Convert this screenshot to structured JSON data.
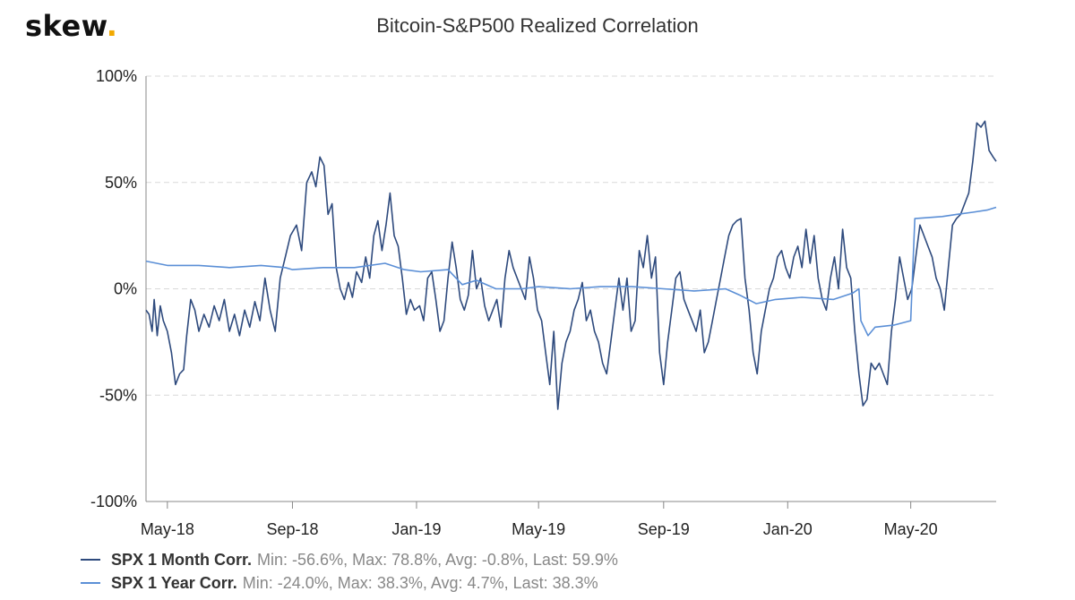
{
  "logo": {
    "text": "skew",
    "dot": ".",
    "dot_color": "#f2a900"
  },
  "chart_data": {
    "type": "line",
    "title": "Bitcoin-S&P500 Realized Correlation",
    "xlabel": "",
    "ylabel": "",
    "ylim": [
      -100,
      100
    ],
    "xlim": [
      "2018-04-10",
      "2020-07-24"
    ],
    "y_ticks": [
      "100%",
      "50%",
      "0%",
      "-50%",
      "-100%"
    ],
    "y_tick_values": [
      100,
      50,
      0,
      -50,
      -100
    ],
    "x_ticks": [
      "May-18",
      "Sep-18",
      "Jan-19",
      "May-19",
      "Sep-19",
      "Jan-20",
      "May-20"
    ],
    "x_tick_dates": [
      "2018-05-01",
      "2018-09-01",
      "2019-01-01",
      "2019-05-01",
      "2019-09-01",
      "2020-01-01",
      "2020-05-01"
    ],
    "grid": "horizontal dashed",
    "legend_position": "bottom-left",
    "series": [
      {
        "name": "SPX 1 Month Corr.",
        "stats": "Min: -56.6%, Max: 78.8%, Avg: -0.8%, Last: 59.9%",
        "color": "#2e4a7d",
        "points": [
          [
            "2018-04-10",
            -10
          ],
          [
            "2018-04-13",
            -12
          ],
          [
            "2018-04-16",
            -20
          ],
          [
            "2018-04-18",
            -5
          ],
          [
            "2018-04-21",
            -22
          ],
          [
            "2018-04-24",
            -8
          ],
          [
            "2018-04-27",
            -15
          ],
          [
            "2018-05-01",
            -20
          ],
          [
            "2018-05-05",
            -30
          ],
          [
            "2018-05-09",
            -45
          ],
          [
            "2018-05-13",
            -40
          ],
          [
            "2018-05-17",
            -38
          ],
          [
            "2018-05-20",
            -22
          ],
          [
            "2018-05-24",
            -5
          ],
          [
            "2018-05-28",
            -10
          ],
          [
            "2018-06-01",
            -20
          ],
          [
            "2018-06-06",
            -12
          ],
          [
            "2018-06-11",
            -18
          ],
          [
            "2018-06-16",
            -8
          ],
          [
            "2018-06-21",
            -15
          ],
          [
            "2018-06-26",
            -5
          ],
          [
            "2018-07-01",
            -20
          ],
          [
            "2018-07-06",
            -12
          ],
          [
            "2018-07-11",
            -22
          ],
          [
            "2018-07-16",
            -10
          ],
          [
            "2018-07-21",
            -18
          ],
          [
            "2018-07-26",
            -6
          ],
          [
            "2018-07-31",
            -15
          ],
          [
            "2018-08-05",
            5
          ],
          [
            "2018-08-10",
            -10
          ],
          [
            "2018-08-15",
            -20
          ],
          [
            "2018-08-20",
            5
          ],
          [
            "2018-08-25",
            15
          ],
          [
            "2018-08-30",
            25
          ],
          [
            "2018-09-05",
            30
          ],
          [
            "2018-09-10",
            18
          ],
          [
            "2018-09-15",
            50
          ],
          [
            "2018-09-20",
            55
          ],
          [
            "2018-09-24",
            48
          ],
          [
            "2018-09-28",
            62
          ],
          [
            "2018-10-02",
            58
          ],
          [
            "2018-10-06",
            35
          ],
          [
            "2018-10-10",
            40
          ],
          [
            "2018-10-14",
            10
          ],
          [
            "2018-10-18",
            0
          ],
          [
            "2018-10-22",
            -5
          ],
          [
            "2018-10-26",
            3
          ],
          [
            "2018-10-30",
            -4
          ],
          [
            "2018-11-03",
            8
          ],
          [
            "2018-11-08",
            3
          ],
          [
            "2018-11-12",
            15
          ],
          [
            "2018-11-16",
            5
          ],
          [
            "2018-11-20",
            25
          ],
          [
            "2018-11-24",
            32
          ],
          [
            "2018-11-28",
            18
          ],
          [
            "2018-12-02",
            30
          ],
          [
            "2018-12-06",
            45
          ],
          [
            "2018-12-10",
            25
          ],
          [
            "2018-12-14",
            20
          ],
          [
            "2018-12-18",
            5
          ],
          [
            "2018-12-22",
            -12
          ],
          [
            "2018-12-26",
            -5
          ],
          [
            "2018-12-30",
            -10
          ],
          [
            "2019-01-04",
            -8
          ],
          [
            "2019-01-08",
            -15
          ],
          [
            "2019-01-12",
            5
          ],
          [
            "2019-01-16",
            8
          ],
          [
            "2019-01-20",
            -5
          ],
          [
            "2019-01-24",
            -20
          ],
          [
            "2019-01-28",
            -15
          ],
          [
            "2019-02-01",
            5
          ],
          [
            "2019-02-05",
            22
          ],
          [
            "2019-02-09",
            10
          ],
          [
            "2019-02-13",
            -5
          ],
          [
            "2019-02-17",
            -10
          ],
          [
            "2019-02-21",
            -3
          ],
          [
            "2019-02-25",
            18
          ],
          [
            "2019-03-01",
            0
          ],
          [
            "2019-03-05",
            5
          ],
          [
            "2019-03-09",
            -8
          ],
          [
            "2019-03-13",
            -15
          ],
          [
            "2019-03-17",
            -10
          ],
          [
            "2019-03-21",
            -5
          ],
          [
            "2019-03-25",
            -18
          ],
          [
            "2019-03-29",
            5
          ],
          [
            "2019-04-02",
            18
          ],
          [
            "2019-04-06",
            10
          ],
          [
            "2019-04-10",
            5
          ],
          [
            "2019-04-14",
            0
          ],
          [
            "2019-04-18",
            -5
          ],
          [
            "2019-04-22",
            15
          ],
          [
            "2019-04-26",
            5
          ],
          [
            "2019-04-30",
            -10
          ],
          [
            "2019-05-04",
            -15
          ],
          [
            "2019-05-08",
            -30
          ],
          [
            "2019-05-12",
            -45
          ],
          [
            "2019-05-16",
            -20
          ],
          [
            "2019-05-20",
            -56.6
          ],
          [
            "2019-05-24",
            -35
          ],
          [
            "2019-05-28",
            -25
          ],
          [
            "2019-06-01",
            -20
          ],
          [
            "2019-06-05",
            -10
          ],
          [
            "2019-06-09",
            -5
          ],
          [
            "2019-06-13",
            3
          ],
          [
            "2019-06-17",
            -15
          ],
          [
            "2019-06-21",
            -10
          ],
          [
            "2019-06-25",
            -20
          ],
          [
            "2019-06-29",
            -25
          ],
          [
            "2019-07-03",
            -35
          ],
          [
            "2019-07-07",
            -40
          ],
          [
            "2019-07-11",
            -25
          ],
          [
            "2019-07-15",
            -10
          ],
          [
            "2019-07-19",
            5
          ],
          [
            "2019-07-23",
            -10
          ],
          [
            "2019-07-27",
            5
          ],
          [
            "2019-07-31",
            -20
          ],
          [
            "2019-08-04",
            -15
          ],
          [
            "2019-08-08",
            18
          ],
          [
            "2019-08-12",
            10
          ],
          [
            "2019-08-16",
            25
          ],
          [
            "2019-08-20",
            5
          ],
          [
            "2019-08-24",
            15
          ],
          [
            "2019-08-28",
            -30
          ],
          [
            "2019-09-01",
            -45
          ],
          [
            "2019-09-05",
            -25
          ],
          [
            "2019-09-09",
            -10
          ],
          [
            "2019-09-13",
            5
          ],
          [
            "2019-09-17",
            8
          ],
          [
            "2019-09-21",
            -5
          ],
          [
            "2019-09-25",
            -10
          ],
          [
            "2019-09-29",
            -15
          ],
          [
            "2019-10-03",
            -20
          ],
          [
            "2019-10-07",
            -10
          ],
          [
            "2019-10-11",
            -30
          ],
          [
            "2019-10-15",
            -25
          ],
          [
            "2019-10-19",
            -15
          ],
          [
            "2019-10-23",
            -5
          ],
          [
            "2019-10-27",
            5
          ],
          [
            "2019-10-31",
            15
          ],
          [
            "2019-11-04",
            25
          ],
          [
            "2019-11-08",
            30
          ],
          [
            "2019-11-12",
            32
          ],
          [
            "2019-11-16",
            33
          ],
          [
            "2019-11-20",
            5
          ],
          [
            "2019-11-24",
            -10
          ],
          [
            "2019-11-28",
            -30
          ],
          [
            "2019-12-02",
            -40
          ],
          [
            "2019-12-06",
            -20
          ],
          [
            "2019-12-10",
            -10
          ],
          [
            "2019-12-14",
            0
          ],
          [
            "2019-12-18",
            5
          ],
          [
            "2019-12-22",
            15
          ],
          [
            "2019-12-26",
            18
          ],
          [
            "2019-12-30",
            10
          ],
          [
            "2020-01-03",
            5
          ],
          [
            "2020-01-07",
            15
          ],
          [
            "2020-01-11",
            20
          ],
          [
            "2020-01-15",
            10
          ],
          [
            "2020-01-19",
            28
          ],
          [
            "2020-01-23",
            12
          ],
          [
            "2020-01-27",
            25
          ],
          [
            "2020-01-31",
            5
          ],
          [
            "2020-02-04",
            -5
          ],
          [
            "2020-02-08",
            -10
          ],
          [
            "2020-02-12",
            5
          ],
          [
            "2020-02-16",
            15
          ],
          [
            "2020-02-20",
            0
          ],
          [
            "2020-02-24",
            28
          ],
          [
            "2020-02-28",
            10
          ],
          [
            "2020-03-03",
            5
          ],
          [
            "2020-03-07",
            -20
          ],
          [
            "2020-03-11",
            -40
          ],
          [
            "2020-03-15",
            -55
          ],
          [
            "2020-03-19",
            -52
          ],
          [
            "2020-03-23",
            -35
          ],
          [
            "2020-03-27",
            -38
          ],
          [
            "2020-03-31",
            -35
          ],
          [
            "2020-04-04",
            -40
          ],
          [
            "2020-04-08",
            -45
          ],
          [
            "2020-04-12",
            -20
          ],
          [
            "2020-04-16",
            -5
          ],
          [
            "2020-04-20",
            15
          ],
          [
            "2020-04-24",
            5
          ],
          [
            "2020-04-28",
            -5
          ],
          [
            "2020-05-02",
            0
          ],
          [
            "2020-05-06",
            15
          ],
          [
            "2020-05-10",
            30
          ],
          [
            "2020-05-14",
            25
          ],
          [
            "2020-05-18",
            20
          ],
          [
            "2020-05-22",
            15
          ],
          [
            "2020-05-26",
            5
          ],
          [
            "2020-05-30",
            0
          ],
          [
            "2020-06-03",
            -10
          ],
          [
            "2020-06-07",
            10
          ],
          [
            "2020-06-11",
            30
          ],
          [
            "2020-06-15",
            33
          ],
          [
            "2020-06-19",
            35
          ],
          [
            "2020-06-23",
            40
          ],
          [
            "2020-06-27",
            45
          ],
          [
            "2020-07-01",
            60
          ],
          [
            "2020-07-05",
            78
          ],
          [
            "2020-07-09",
            76
          ],
          [
            "2020-07-13",
            78.8
          ],
          [
            "2020-07-17",
            65
          ],
          [
            "2020-07-21",
            62
          ],
          [
            "2020-07-24",
            59.9
          ]
        ]
      },
      {
        "name": "SPX 1 Year Corr.",
        "stats": "Min: -24.0%, Max: 38.3%, Avg: 4.7%, Last: 38.3%",
        "color": "#5b8fd6",
        "points": [
          [
            "2018-04-10",
            13
          ],
          [
            "2018-05-01",
            11
          ],
          [
            "2018-06-01",
            11
          ],
          [
            "2018-07-01",
            10
          ],
          [
            "2018-08-01",
            11
          ],
          [
            "2018-08-25",
            10
          ],
          [
            "2018-09-01",
            9
          ],
          [
            "2018-10-01",
            10
          ],
          [
            "2018-11-01",
            10
          ],
          [
            "2018-12-01",
            12
          ],
          [
            "2018-12-20",
            9
          ],
          [
            "2019-01-05",
            8
          ],
          [
            "2019-02-01",
            9
          ],
          [
            "2019-02-15",
            2
          ],
          [
            "2019-03-01",
            4
          ],
          [
            "2019-03-20",
            0
          ],
          [
            "2019-04-15",
            0
          ],
          [
            "2019-05-01",
            1
          ],
          [
            "2019-06-01",
            0
          ],
          [
            "2019-07-01",
            1
          ],
          [
            "2019-08-01",
            1
          ],
          [
            "2019-09-01",
            0
          ],
          [
            "2019-10-01",
            -1
          ],
          [
            "2019-11-01",
            0
          ],
          [
            "2019-11-15",
            -3
          ],
          [
            "2019-12-01",
            -7
          ],
          [
            "2019-12-20",
            -5
          ],
          [
            "2020-01-15",
            -4
          ],
          [
            "2020-02-15",
            -5
          ],
          [
            "2020-03-05",
            -2
          ],
          [
            "2020-03-11",
            0
          ],
          [
            "2020-03-13",
            -15
          ],
          [
            "2020-03-20",
            -22
          ],
          [
            "2020-03-27",
            -18
          ],
          [
            "2020-04-15",
            -17
          ],
          [
            "2020-05-01",
            -15
          ],
          [
            "2020-05-05",
            33
          ],
          [
            "2020-06-01",
            34
          ],
          [
            "2020-06-15",
            35
          ],
          [
            "2020-07-01",
            36
          ],
          [
            "2020-07-15",
            37
          ],
          [
            "2020-07-24",
            38.3
          ]
        ]
      }
    ]
  }
}
